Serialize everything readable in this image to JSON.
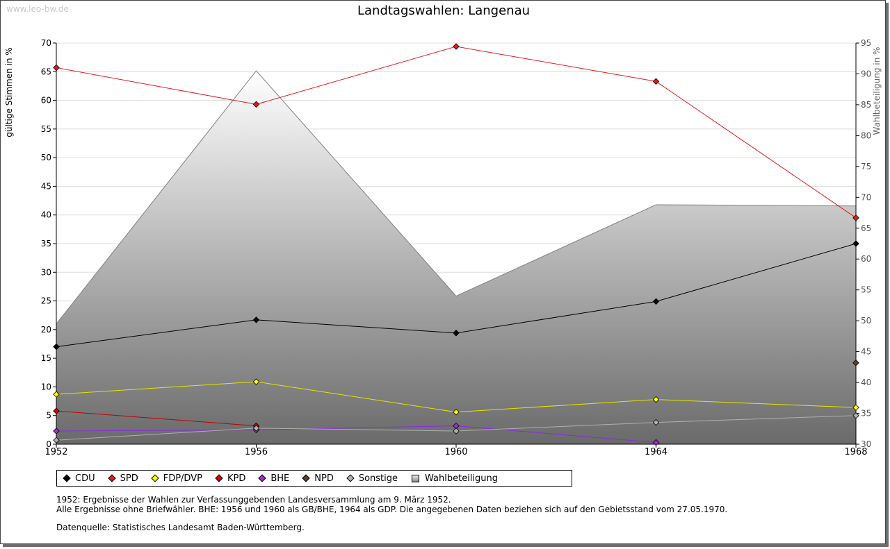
{
  "watermark": "www.leo-bw.de",
  "chart_data": {
    "type": "line",
    "title": "Landtagswahlen: Langenau",
    "xlabel": "",
    "ylabel": "gültige Stimmen in %",
    "y2label": "Wahlbeteiligung in %",
    "categories": [
      "1952",
      "1956",
      "1960",
      "1964",
      "1968"
    ],
    "ylim": [
      0,
      70
    ],
    "yticks": [
      0,
      5,
      10,
      15,
      20,
      25,
      30,
      35,
      40,
      45,
      50,
      55,
      60,
      65,
      70
    ],
    "y2lim": [
      30,
      95
    ],
    "y2ticks": [
      30,
      35,
      40,
      45,
      50,
      55,
      60,
      65,
      70,
      75,
      80,
      85,
      90,
      95
    ],
    "grid": true,
    "legend_position": "bottom-left",
    "series": [
      {
        "name": "CDU",
        "color": "#000000",
        "marker": "#000000",
        "values": [
          17.0,
          21.7,
          19.4,
          24.9,
          35.0
        ]
      },
      {
        "name": "SPD",
        "color": "#e41a1c",
        "marker": "#e41a1c",
        "values": [
          65.7,
          59.3,
          69.4,
          63.3,
          39.5
        ]
      },
      {
        "name": "FDP/DVP",
        "color": "#e5e500",
        "marker": "#ffff00",
        "values": [
          8.7,
          10.9,
          5.6,
          7.8,
          6.4
        ]
      },
      {
        "name": "KPD",
        "color": "#c00000",
        "marker": "#d40000",
        "values": [
          5.8,
          3.2,
          null,
          null,
          null
        ]
      },
      {
        "name": "BHE",
        "color": "#8a2be2",
        "marker": "#9932cc",
        "values": [
          2.3,
          2.5,
          3.2,
          0.3,
          null
        ]
      },
      {
        "name": "NPD",
        "color": "#5c4033",
        "marker": "#5c4033",
        "values": [
          null,
          null,
          null,
          null,
          14.2
        ]
      },
      {
        "name": "Sonstige",
        "color": "#b0b0b0",
        "marker": "#b0b0b0",
        "values": [
          0.7,
          2.8,
          2.3,
          3.8,
          5.0
        ]
      }
    ],
    "area_series": {
      "name": "Wahlbeteiligung",
      "axis": "right",
      "values": [
        49.5,
        90.5,
        54.0,
        68.8,
        68.6
      ]
    }
  },
  "notes": {
    "line1": "1952: Ergebnisse der Wahlen zur Verfassunggebenden Landesversammlung am 9. März 1952.",
    "line2": "Alle Ergebnisse ohne Briefwähler. BHE: 1956 und 1960 als GB/BHE, 1964 als GDP. Die angegebenen Daten beziehen sich auf den Gebietsstand vom 27.05.1970.",
    "source": "Datenquelle: Statistisches Landesamt Baden-Württemberg."
  }
}
